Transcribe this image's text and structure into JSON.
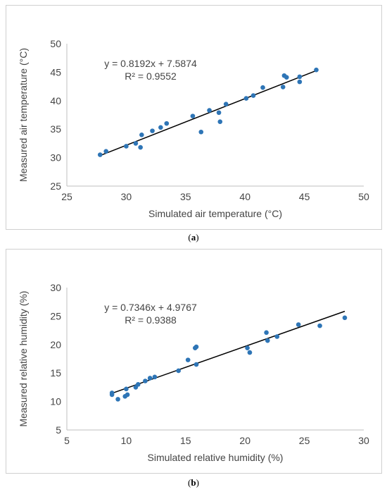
{
  "chart_data": [
    {
      "type": "scatter",
      "panel_label": "a",
      "xlabel": "Simulated air temperature (°C)",
      "ylabel": "Measured air temperature (°C)",
      "xlim": [
        25,
        50
      ],
      "ylim": [
        25,
        50
      ],
      "xticks": [
        25,
        30,
        35,
        40,
        45,
        50
      ],
      "yticks": [
        25,
        30,
        35,
        40,
        45,
        50
      ],
      "equation": "y = 0.8192x + 7.5874",
      "r2": "R² = 0.9552",
      "trendline": {
        "slope": 0.8192,
        "intercept": 7.5874,
        "x_range": [
          27.8,
          46.0
        ]
      },
      "marker_color": "#2E75B6",
      "line_color": "#000000",
      "points": [
        [
          27.8,
          30.5
        ],
        [
          28.3,
          31.1
        ],
        [
          30.0,
          32.0
        ],
        [
          30.8,
          32.5
        ],
        [
          31.2,
          31.8
        ],
        [
          31.3,
          34.0
        ],
        [
          32.2,
          34.7
        ],
        [
          32.9,
          35.3
        ],
        [
          33.4,
          36.0
        ],
        [
          35.6,
          37.3
        ],
        [
          36.3,
          34.5
        ],
        [
          37.0,
          38.3
        ],
        [
          37.8,
          37.9
        ],
        [
          37.9,
          36.3
        ],
        [
          38.4,
          39.4
        ],
        [
          40.1,
          40.4
        ],
        [
          40.7,
          40.9
        ],
        [
          41.5,
          42.3
        ],
        [
          43.2,
          42.4
        ],
        [
          43.3,
          44.4
        ],
        [
          43.5,
          44.1
        ],
        [
          44.6,
          44.2
        ],
        [
          44.6,
          43.3
        ],
        [
          46.0,
          45.4
        ]
      ]
    },
    {
      "type": "scatter",
      "panel_label": "b",
      "xlabel": "Simulated relative humidity (%)",
      "ylabel": "Measured relative humidity (%)",
      "xlim": [
        5,
        30
      ],
      "ylim": [
        5,
        30
      ],
      "xticks": [
        5,
        10,
        15,
        20,
        25,
        30
      ],
      "yticks": [
        5,
        10,
        15,
        20,
        25,
        30
      ],
      "equation": "y = 0.7346x + 4.9767",
      "r2": "R² = 0.9388",
      "trendline": {
        "slope": 0.7346,
        "intercept": 4.9767,
        "x_range": [
          8.8,
          28.4
        ]
      },
      "marker_color": "#2E75B6",
      "line_color": "#000000",
      "points": [
        [
          8.8,
          11.2
        ],
        [
          8.8,
          11.5
        ],
        [
          9.3,
          10.4
        ],
        [
          9.9,
          10.9
        ],
        [
          10.0,
          12.2
        ],
        [
          10.1,
          11.2
        ],
        [
          10.8,
          12.5
        ],
        [
          11.0,
          13.0
        ],
        [
          11.6,
          13.6
        ],
        [
          12.0,
          14.1
        ],
        [
          12.4,
          14.3
        ],
        [
          14.4,
          15.4
        ],
        [
          15.2,
          17.3
        ],
        [
          15.8,
          19.4
        ],
        [
          15.9,
          19.6
        ],
        [
          15.9,
          16.5
        ],
        [
          20.2,
          19.4
        ],
        [
          20.4,
          18.6
        ],
        [
          21.8,
          22.1
        ],
        [
          21.9,
          20.7
        ],
        [
          22.7,
          21.4
        ],
        [
          24.5,
          23.5
        ],
        [
          26.3,
          23.3
        ],
        [
          28.4,
          24.7
        ]
      ]
    }
  ]
}
